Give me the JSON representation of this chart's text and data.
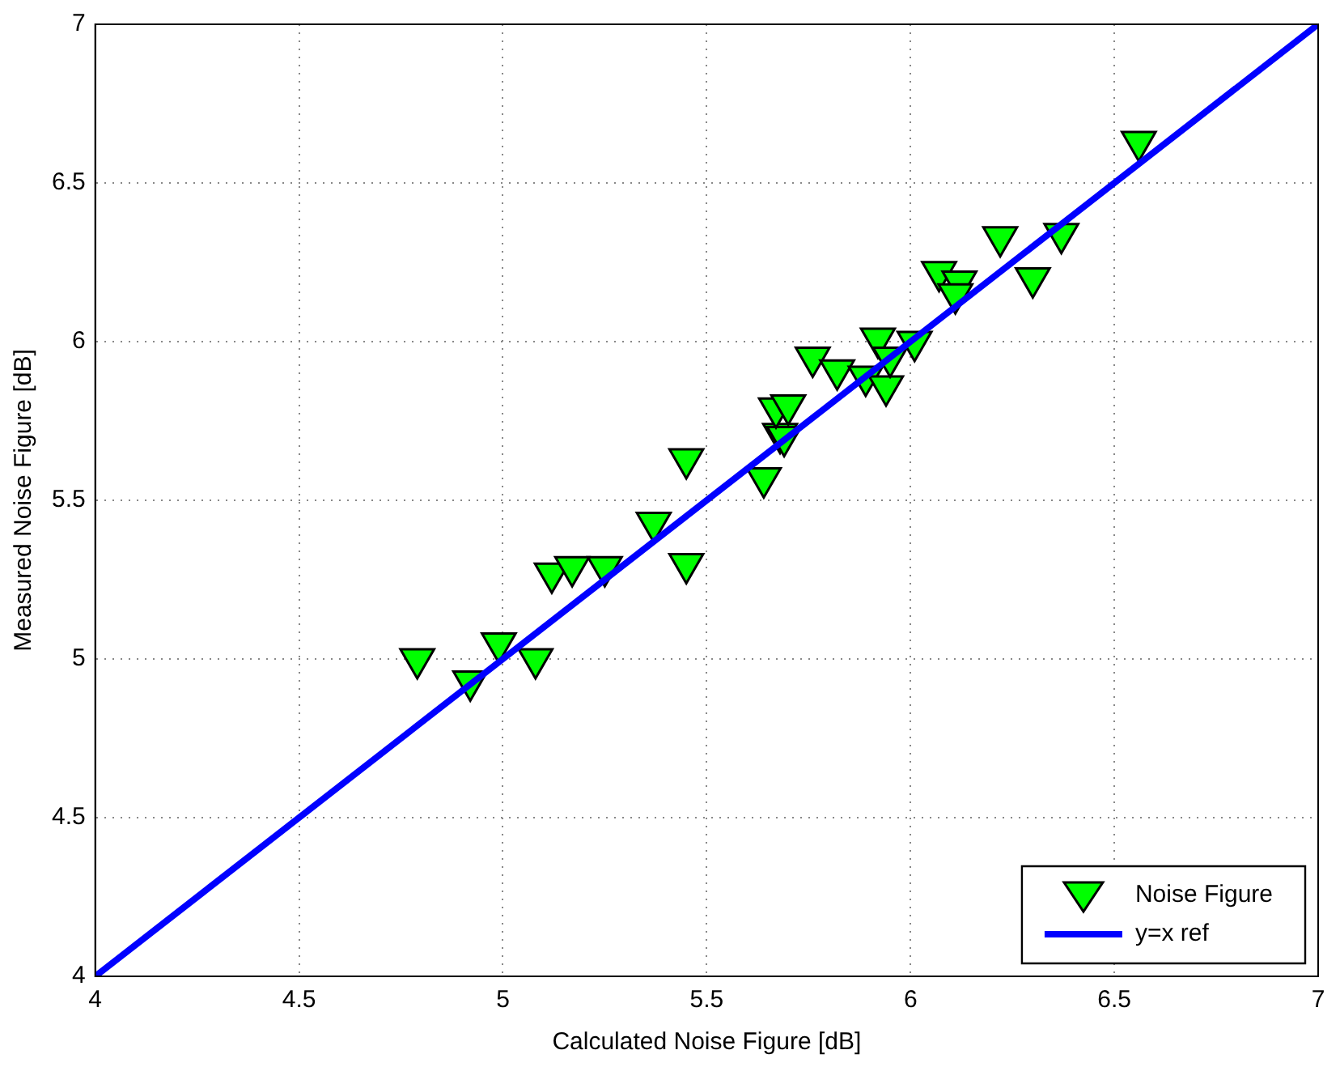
{
  "chart_data": {
    "type": "scatter",
    "xlabel": "Calculated Noise Figure [dB]",
    "ylabel": "Measured Noise Figure [dB]",
    "xlim": [
      4,
      7
    ],
    "xticks": [
      4,
      4.5,
      5,
      5.5,
      6,
      6.5,
      7
    ],
    "ylim": [
      4,
      7
    ],
    "yticks": [
      4,
      4.5,
      5,
      5.5,
      6,
      6.5,
      7
    ],
    "grid": true,
    "legend": "bottom right",
    "series": [
      {
        "name": "Noise Figure",
        "marker": "triangle",
        "color": "#00ff00",
        "x": [
          4.79,
          4.92,
          4.99,
          5.08,
          5.12,
          5.17,
          5.25,
          5.37,
          5.45,
          5.45,
          5.64,
          5.68,
          5.69,
          5.67,
          5.7,
          5.76,
          5.82,
          5.89,
          5.92,
          5.94,
          5.95,
          6.01,
          6.07,
          6.12,
          6.11,
          6.22,
          6.3,
          6.37,
          6.56
        ],
        "values": [
          5.0,
          4.93,
          5.05,
          5.0,
          5.27,
          5.29,
          5.29,
          5.43,
          5.3,
          5.63,
          5.57,
          5.71,
          5.7,
          5.79,
          5.8,
          5.95,
          5.91,
          5.89,
          6.01,
          5.86,
          5.95,
          6.0,
          6.22,
          6.19,
          6.15,
          6.33,
          6.2,
          6.34,
          6.63
        ]
      },
      {
        "name": "y=x ref",
        "type": "line",
        "marker": "none",
        "color": "#0000ff",
        "x": [
          4,
          7
        ],
        "values": [
          4,
          7
        ]
      }
    ]
  }
}
